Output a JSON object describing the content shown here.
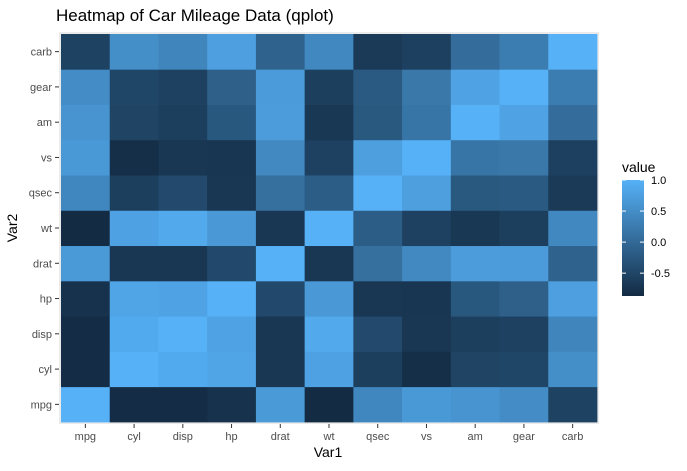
{
  "chart_data": {
    "type": "heatmap",
    "title": "Heatmap of Car Mileage Data (qplot)",
    "xlabel": "Var1",
    "ylabel": "Var2",
    "x_categories": [
      "mpg",
      "cyl",
      "disp",
      "hp",
      "drat",
      "wt",
      "qsec",
      "vs",
      "am",
      "gear",
      "carb"
    ],
    "y_categories": [
      "mpg",
      "cyl",
      "disp",
      "hp",
      "drat",
      "wt",
      "qsec",
      "vs",
      "am",
      "gear",
      "carb"
    ],
    "values": [
      [
        1.0,
        -0.852,
        -0.848,
        -0.776,
        0.681,
        -0.868,
        0.419,
        0.664,
        0.6,
        0.48,
        -0.551
      ],
      [
        -0.852,
        1.0,
        0.902,
        0.832,
        -0.7,
        0.782,
        -0.591,
        -0.811,
        -0.523,
        -0.493,
        0.527
      ],
      [
        -0.848,
        0.902,
        1.0,
        0.791,
        -0.71,
        0.888,
        -0.434,
        -0.71,
        -0.591,
        -0.556,
        0.395
      ],
      [
        -0.776,
        0.832,
        0.791,
        1.0,
        -0.449,
        0.659,
        -0.708,
        -0.723,
        -0.243,
        -0.126,
        0.75
      ],
      [
        0.681,
        -0.7,
        -0.71,
        -0.449,
        1.0,
        -0.712,
        0.091,
        0.44,
        0.713,
        0.7,
        -0.091
      ],
      [
        -0.868,
        0.782,
        0.888,
        0.659,
        -0.712,
        1.0,
        -0.175,
        -0.555,
        -0.692,
        -0.583,
        0.428
      ],
      [
        0.419,
        -0.591,
        -0.434,
        -0.708,
        0.091,
        -0.175,
        1.0,
        0.745,
        -0.23,
        -0.213,
        -0.656
      ],
      [
        0.664,
        -0.811,
        -0.71,
        -0.723,
        0.44,
        -0.555,
        0.745,
        1.0,
        0.168,
        0.206,
        -0.57
      ],
      [
        0.6,
        -0.523,
        -0.591,
        -0.243,
        0.713,
        -0.692,
        -0.23,
        0.168,
        1.0,
        0.794,
        0.058
      ],
      [
        0.48,
        -0.493,
        -0.556,
        -0.126,
        0.7,
        -0.583,
        -0.213,
        0.206,
        0.794,
        1.0,
        0.274
      ],
      [
        -0.551,
        0.527,
        0.395,
        0.75,
        -0.091,
        0.428,
        -0.656,
        -0.57,
        0.058,
        0.274,
        1.0
      ]
    ],
    "legend": {
      "title": "value",
      "placement": "right",
      "breaks": [
        1.0,
        0.5,
        0.0,
        -0.5
      ],
      "labels": [
        "1.0",
        "0.5",
        "0.0",
        "-0.5"
      ],
      "min": -0.868,
      "max": 1.0,
      "low_color": "#132B43",
      "high_color": "#56B1F7"
    },
    "panel_background": "#EBEBEB",
    "grid": true
  }
}
